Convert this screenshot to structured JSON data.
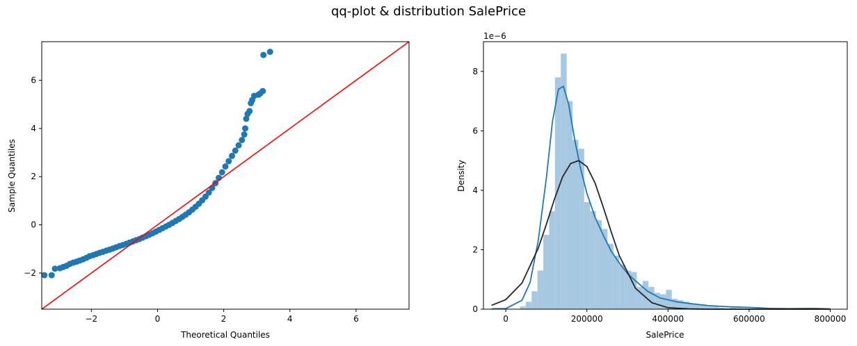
{
  "figure": {
    "title": "qq-plot & distribution SalePrice"
  },
  "chart_data": [
    {
      "type": "scatter",
      "xlabel": "Theoretical Quantiles",
      "ylabel": "Sample Quantiles",
      "xlim": [
        -3.5,
        7.6
      ],
      "ylim": [
        -3.5,
        7.6
      ],
      "xticks": [
        -2,
        0,
        2,
        4,
        6
      ],
      "yticks": [
        -2,
        0,
        2,
        4,
        6
      ],
      "xtick_labels": [
        "−2",
        "0",
        "2",
        "4",
        "6"
      ],
      "ytick_labels": [
        "−2",
        "0",
        "2",
        "4",
        "6"
      ],
      "point_color": "#1f77b4",
      "reference_line": {
        "color": "#ff0000",
        "slope": 1,
        "intercept": 0
      },
      "points": [
        [
          -3.42,
          -2.09
        ],
        [
          -3.2,
          -2.09
        ],
        [
          -3.1,
          -1.82
        ],
        [
          -2.95,
          -1.8
        ],
        [
          -2.85,
          -1.75
        ],
        [
          -2.75,
          -1.7
        ],
        [
          -2.65,
          -1.62
        ],
        [
          -2.55,
          -1.57
        ],
        [
          -2.45,
          -1.53
        ],
        [
          -2.35,
          -1.48
        ],
        [
          -2.25,
          -1.43
        ],
        [
          -2.15,
          -1.37
        ],
        [
          -2.05,
          -1.3
        ],
        [
          -1.95,
          -1.26
        ],
        [
          -1.85,
          -1.21
        ],
        [
          -1.75,
          -1.16
        ],
        [
          -1.65,
          -1.12
        ],
        [
          -1.55,
          -1.07
        ],
        [
          -1.45,
          -1.03
        ],
        [
          -1.35,
          -0.98
        ],
        [
          -1.25,
          -0.93
        ],
        [
          -1.15,
          -0.88
        ],
        [
          -1.05,
          -0.84
        ],
        [
          -0.95,
          -0.79
        ],
        [
          -0.85,
          -0.74
        ],
        [
          -0.75,
          -0.69
        ],
        [
          -0.65,
          -0.64
        ],
        [
          -0.55,
          -0.59
        ],
        [
          -0.45,
          -0.53
        ],
        [
          -0.35,
          -0.47
        ],
        [
          -0.25,
          -0.41
        ],
        [
          -0.15,
          -0.35
        ],
        [
          -0.05,
          -0.28
        ],
        [
          0.05,
          -0.21
        ],
        [
          0.15,
          -0.14
        ],
        [
          0.25,
          -0.07
        ],
        [
          0.35,
          0.0
        ],
        [
          0.45,
          0.08
        ],
        [
          0.55,
          0.16
        ],
        [
          0.65,
          0.24
        ],
        [
          0.75,
          0.33
        ],
        [
          0.85,
          0.42
        ],
        [
          0.95,
          0.52
        ],
        [
          1.05,
          0.63
        ],
        [
          1.15,
          0.75
        ],
        [
          1.25,
          0.88
        ],
        [
          1.35,
          1.02
        ],
        [
          1.45,
          1.17
        ],
        [
          1.55,
          1.34
        ],
        [
          1.65,
          1.53
        ],
        [
          1.75,
          1.73
        ],
        [
          1.85,
          1.95
        ],
        [
          1.95,
          2.18
        ],
        [
          2.05,
          2.42
        ],
        [
          2.15,
          2.64
        ],
        [
          2.25,
          2.86
        ],
        [
          2.35,
          3.08
        ],
        [
          2.45,
          3.3
        ],
        [
          2.55,
          3.52
        ],
        [
          2.62,
          3.75
        ],
        [
          2.65,
          4.0
        ],
        [
          2.68,
          4.4
        ],
        [
          2.72,
          4.6
        ],
        [
          2.78,
          4.72
        ],
        [
          2.82,
          5.05
        ],
        [
          2.86,
          5.18
        ],
        [
          2.92,
          5.35
        ],
        [
          3.05,
          5.4
        ],
        [
          3.1,
          5.45
        ],
        [
          3.18,
          5.55
        ],
        [
          3.2,
          7.05
        ],
        [
          3.4,
          7.18
        ]
      ]
    },
    {
      "type": "histogram",
      "xlabel": "SalePrice",
      "ylabel": "Density",
      "scale_label": "1e−6",
      "xlim": [
        -55000,
        842000
      ],
      "ylim": [
        0,
        9.0
      ],
      "xticks": [
        0,
        200000,
        400000,
        600000,
        800000
      ],
      "yticks": [
        0,
        2,
        4,
        6,
        8
      ],
      "xtick_labels": [
        "0",
        "200000",
        "400000",
        "600000",
        "800000"
      ],
      "ytick_labels": [
        "0",
        "2",
        "4",
        "6",
        "8"
      ],
      "hist_color": "#a6c8e0",
      "bins": {
        "start": 35000,
        "width": 14400,
        "values": [
          0.1,
          0.25,
          0.6,
          1.3,
          2.5,
          3.3,
          7.8,
          8.6,
          7.0,
          5.7,
          5.4,
          3.6,
          3.3,
          3.0,
          2.7,
          2.2,
          1.8,
          1.5,
          1.3,
          1.25,
          0.75,
          0.95,
          0.75,
          0.55,
          0.5,
          0.65,
          0.35,
          0.3,
          0.25,
          0.2,
          0.15,
          0.15,
          0.1,
          0.1,
          0.05,
          0.03,
          0.05,
          0.03,
          0.02,
          0.02,
          0.02,
          0.01,
          0.01,
          0.01,
          0.0,
          0.0,
          0.0,
          0.01,
          0.0,
          0.01
        ]
      },
      "series": [
        {
          "color": "#1f77b4",
          "x": [
            -35000,
            0,
            40000,
            60000,
            80000,
            100000,
            115000,
            130000,
            142000,
            155000,
            170000,
            185000,
            200000,
            220000,
            240000,
            260000,
            280000,
            300000,
            320000,
            350000,
            380000,
            420000,
            460000,
            500000,
            550000,
            600000,
            650000,
            700000,
            755000,
            800000
          ],
          "y": [
            0.01,
            0.02,
            0.3,
            0.9,
            2.3,
            4.4,
            6.3,
            7.4,
            7.5,
            6.9,
            5.7,
            4.7,
            3.9,
            3.1,
            2.5,
            1.95,
            1.55,
            1.2,
            0.95,
            0.6,
            0.38,
            0.25,
            0.18,
            0.12,
            0.08,
            0.06,
            0.03,
            0.02,
            0.03,
            0.01
          ]
        },
        {
          "color": "#262626",
          "x": [
            -35000,
            0,
            40000,
            80000,
            100000,
            120000,
            140000,
            160000,
            180000,
            200000,
            220000,
            240000,
            260000,
            280000,
            320000,
            360000,
            400000,
            450000,
            500000,
            600000,
            700000,
            800000
          ],
          "y": [
            0.13,
            0.32,
            0.88,
            2.05,
            2.85,
            3.7,
            4.45,
            4.9,
            5.0,
            4.8,
            4.25,
            3.45,
            2.6,
            1.8,
            0.7,
            0.22,
            0.05,
            0.01,
            0.0,
            0.0,
            0.0,
            0.0
          ]
        }
      ]
    }
  ]
}
